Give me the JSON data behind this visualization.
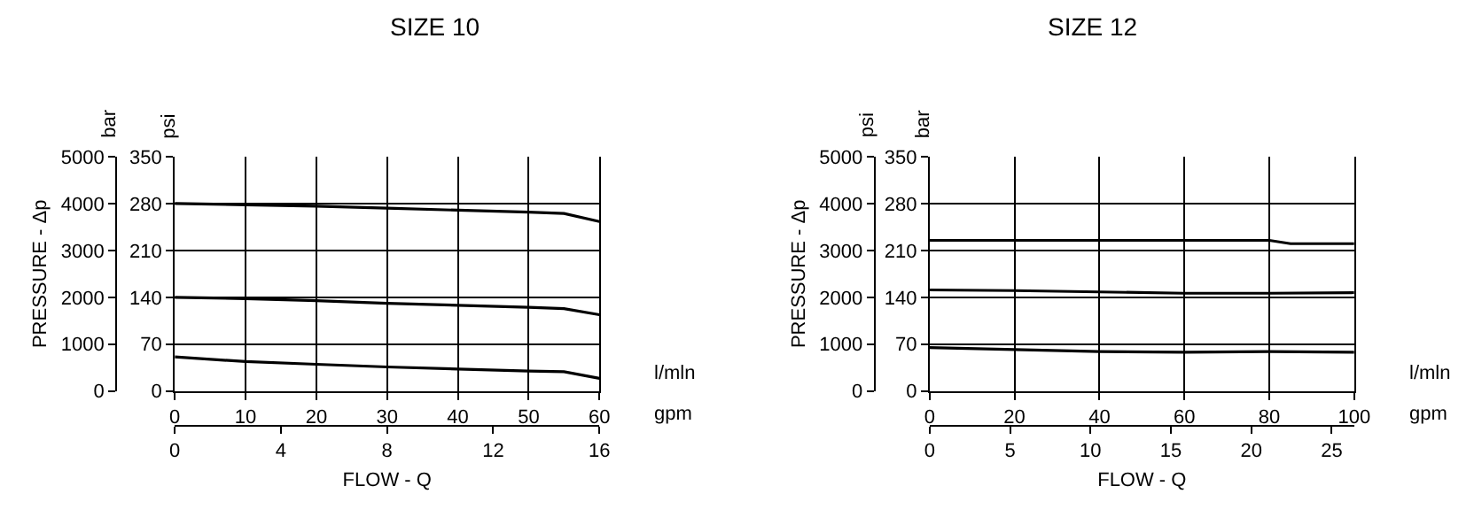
{
  "chart_data": [
    {
      "type": "line",
      "title": "SIZE 10",
      "xlabel": "FLOW - Q",
      "y2label": "PRESSURE - Δp",
      "annotations": [
        "bar",
        "psi",
        "l/mln",
        "gpm"
      ],
      "series": [
        {
          "color": "#000000",
          "x": [
            0,
            10,
            20,
            30,
            40,
            50,
            55,
            60
          ],
          "values": [
            280,
            278,
            276,
            273,
            270,
            267,
            265,
            253
          ]
        },
        {
          "color": "#000000",
          "x": [
            0,
            10,
            20,
            30,
            40,
            50,
            55,
            60
          ],
          "values": [
            140,
            138,
            135,
            131,
            128,
            125,
            123,
            114
          ]
        },
        {
          "color": "#000000",
          "x": [
            0,
            10,
            20,
            30,
            40,
            50,
            55,
            60
          ],
          "values": [
            51,
            44,
            40,
            36,
            33,
            30,
            29,
            19
          ]
        }
      ],
      "xlim": [
        0,
        60
      ],
      "xticks": [
        0,
        10,
        20,
        30,
        40,
        50,
        60
      ],
      "x2lim": [
        0,
        16
      ],
      "x2ticks": [
        0,
        4,
        8,
        12,
        16
      ],
      "ylim": [
        0,
        350
      ],
      "yticks": [
        0,
        70,
        140,
        210,
        280,
        350
      ],
      "y2lim": [
        0,
        5000
      ],
      "y2ticks": [
        0,
        1000,
        2000,
        3000,
        4000,
        5000
      ],
      "grid": true,
      "marker": "none",
      "line_style": "solid"
    },
    {
      "type": "line",
      "title": "SIZE 12",
      "xlabel": "FLOW - Q",
      "y2label": "PRESSURE - Δp",
      "annotations": [
        "psi",
        "bar",
        "l/mln",
        "gpm"
      ],
      "series": [
        {
          "color": "#000000",
          "x": [
            0,
            20,
            40,
            60,
            80,
            85,
            100
          ],
          "values": [
            225,
            225,
            225,
            225,
            225,
            220,
            220
          ]
        },
        {
          "color": "#000000",
          "x": [
            0,
            20,
            40,
            60,
            80,
            100
          ],
          "values": [
            151,
            150,
            148,
            146,
            146,
            147
          ]
        },
        {
          "color": "#000000",
          "x": [
            0,
            20,
            40,
            60,
            80,
            100
          ],
          "values": [
            65,
            62,
            59,
            58,
            59,
            58
          ]
        }
      ],
      "xlim": [
        0,
        100
      ],
      "xticks": [
        0,
        20,
        40,
        60,
        80,
        100
      ],
      "x2lim": [
        0,
        26.4
      ],
      "x2ticks": [
        0,
        5,
        10,
        15,
        20,
        25
      ],
      "ylim": [
        0,
        350
      ],
      "yticks": [
        0,
        70,
        140,
        210,
        280,
        350
      ],
      "y2lim": [
        0,
        5000
      ],
      "y2ticks": [
        0,
        1000,
        2000,
        3000,
        4000,
        5000
      ],
      "grid": true,
      "marker": "none",
      "line_style": "solid"
    }
  ]
}
